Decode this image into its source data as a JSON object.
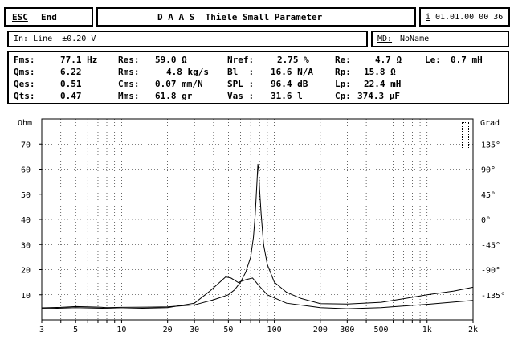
{
  "header": {
    "esc_key": "ESC",
    "esc_label": "End",
    "title": "D A A S  Thiele Small Parameter",
    "info_key": "i",
    "datetime": "01.01.00 00 36"
  },
  "input_bar": {
    "input_text": "In: Line  ±0.20 V",
    "md_key": "MD:",
    "md_value": "NoName"
  },
  "params": {
    "col1": [
      {
        "label": "Fms:",
        "value": "77.1 Hz"
      },
      {
        "label": "Qms:",
        "value": "6.22"
      },
      {
        "label": "Qes:",
        "value": "0.51"
      },
      {
        "label": "Qts:",
        "value": "0.47"
      }
    ],
    "col2": [
      {
        "label": "Res:",
        "value": "59.0 Ω"
      },
      {
        "label": "Rms:",
        "value": "4.8 kg/s"
      },
      {
        "label": "Cms:",
        "value": "0.07 mm/N"
      },
      {
        "label": "Mms:",
        "value": "61.8 gr"
      }
    ],
    "col3": [
      {
        "label": "Nref:",
        "value": "2.75 %"
      },
      {
        "label": "Bl  :",
        "value": "16.6 N/A"
      },
      {
        "label": "SPL :",
        "value": "96.4 dB"
      },
      {
        "label": "Vas :",
        "value": "31.6 l"
      }
    ],
    "col4": [
      {
        "label": "Re:",
        "value": "4.7 Ω"
      },
      {
        "label": "Rp:",
        "value": "15.8 Ω"
      },
      {
        "label": "Lp:",
        "value": "22.4 mH"
      },
      {
        "label": "Cp:",
        "value": "374.3 µF"
      }
    ],
    "col5": [
      {
        "label": "Le:",
        "value": "0.7 mH"
      }
    ]
  },
  "chart_data": {
    "type": "line",
    "xscale": "log",
    "xlim": [
      3,
      2000
    ],
    "ylim": [
      0,
      80
    ],
    "ylim_right": [
      -180,
      180
    ],
    "ylabel": "Ohm",
    "ylabel_right": "Grad",
    "x_ticks": [
      {
        "v": 3,
        "t": "3"
      },
      {
        "v": 5,
        "t": "5"
      },
      {
        "v": 10,
        "t": "10"
      },
      {
        "v": 20,
        "t": "20"
      },
      {
        "v": 30,
        "t": "30"
      },
      {
        "v": 50,
        "t": "50"
      },
      {
        "v": 100,
        "t": "100"
      },
      {
        "v": 200,
        "t": "200"
      },
      {
        "v": 300,
        "t": "300"
      },
      {
        "v": 500,
        "t": "500"
      },
      {
        "v": 1000,
        "t": "1k"
      },
      {
        "v": 2000,
        "t": "2k"
      }
    ],
    "y_ticks": [
      10,
      20,
      30,
      40,
      50,
      60,
      70
    ],
    "y_right_ticks": [
      {
        "v": 135,
        "t": "135°"
      },
      {
        "v": 90,
        "t": "90°"
      },
      {
        "v": 45,
        "t": "45°"
      },
      {
        "v": 0,
        "t": "0°"
      },
      {
        "v": -45,
        "t": "-45°"
      },
      {
        "v": -90,
        "t": "-90°"
      },
      {
        "v": -135,
        "t": "-135°"
      }
    ],
    "grid": true,
    "series": [
      {
        "axis": "left",
        "points": [
          [
            3,
            4.8
          ],
          [
            4,
            5
          ],
          [
            5,
            5.3
          ],
          [
            6,
            5.2
          ],
          [
            7,
            5.1
          ],
          [
            8,
            4.9
          ],
          [
            10,
            5
          ],
          [
            15,
            5.1
          ],
          [
            20,
            5.2
          ],
          [
            30,
            6
          ],
          [
            40,
            8
          ],
          [
            50,
            10
          ],
          [
            55,
            12
          ],
          [
            60,
            15
          ],
          [
            65,
            19
          ],
          [
            70,
            25
          ],
          [
            73,
            33
          ],
          [
            75,
            42
          ],
          [
            77,
            55
          ],
          [
            78,
            62
          ],
          [
            79,
            60
          ],
          [
            80,
            52
          ],
          [
            82,
            42
          ],
          [
            85,
            30
          ],
          [
            90,
            22
          ],
          [
            100,
            15
          ],
          [
            120,
            11
          ],
          [
            150,
            8.5
          ],
          [
            200,
            6.5
          ],
          [
            300,
            6.3
          ],
          [
            500,
            7
          ],
          [
            800,
            9
          ],
          [
            1000,
            10
          ],
          [
            1500,
            11.5
          ],
          [
            2000,
            13
          ]
        ]
      },
      {
        "axis": "right",
        "points": [
          [
            3,
            -160
          ],
          [
            5,
            -158
          ],
          [
            10,
            -160
          ],
          [
            20,
            -158
          ],
          [
            30,
            -150
          ],
          [
            38,
            -128
          ],
          [
            45,
            -110
          ],
          [
            48,
            -103
          ],
          [
            52,
            -105
          ],
          [
            58,
            -113
          ],
          [
            65,
            -108
          ],
          [
            72,
            -105
          ],
          [
            80,
            -120
          ],
          [
            90,
            -135
          ],
          [
            120,
            -150
          ],
          [
            200,
            -158
          ],
          [
            300,
            -160
          ],
          [
            500,
            -158
          ],
          [
            1000,
            -152
          ],
          [
            2000,
            -145
          ]
        ]
      }
    ]
  }
}
